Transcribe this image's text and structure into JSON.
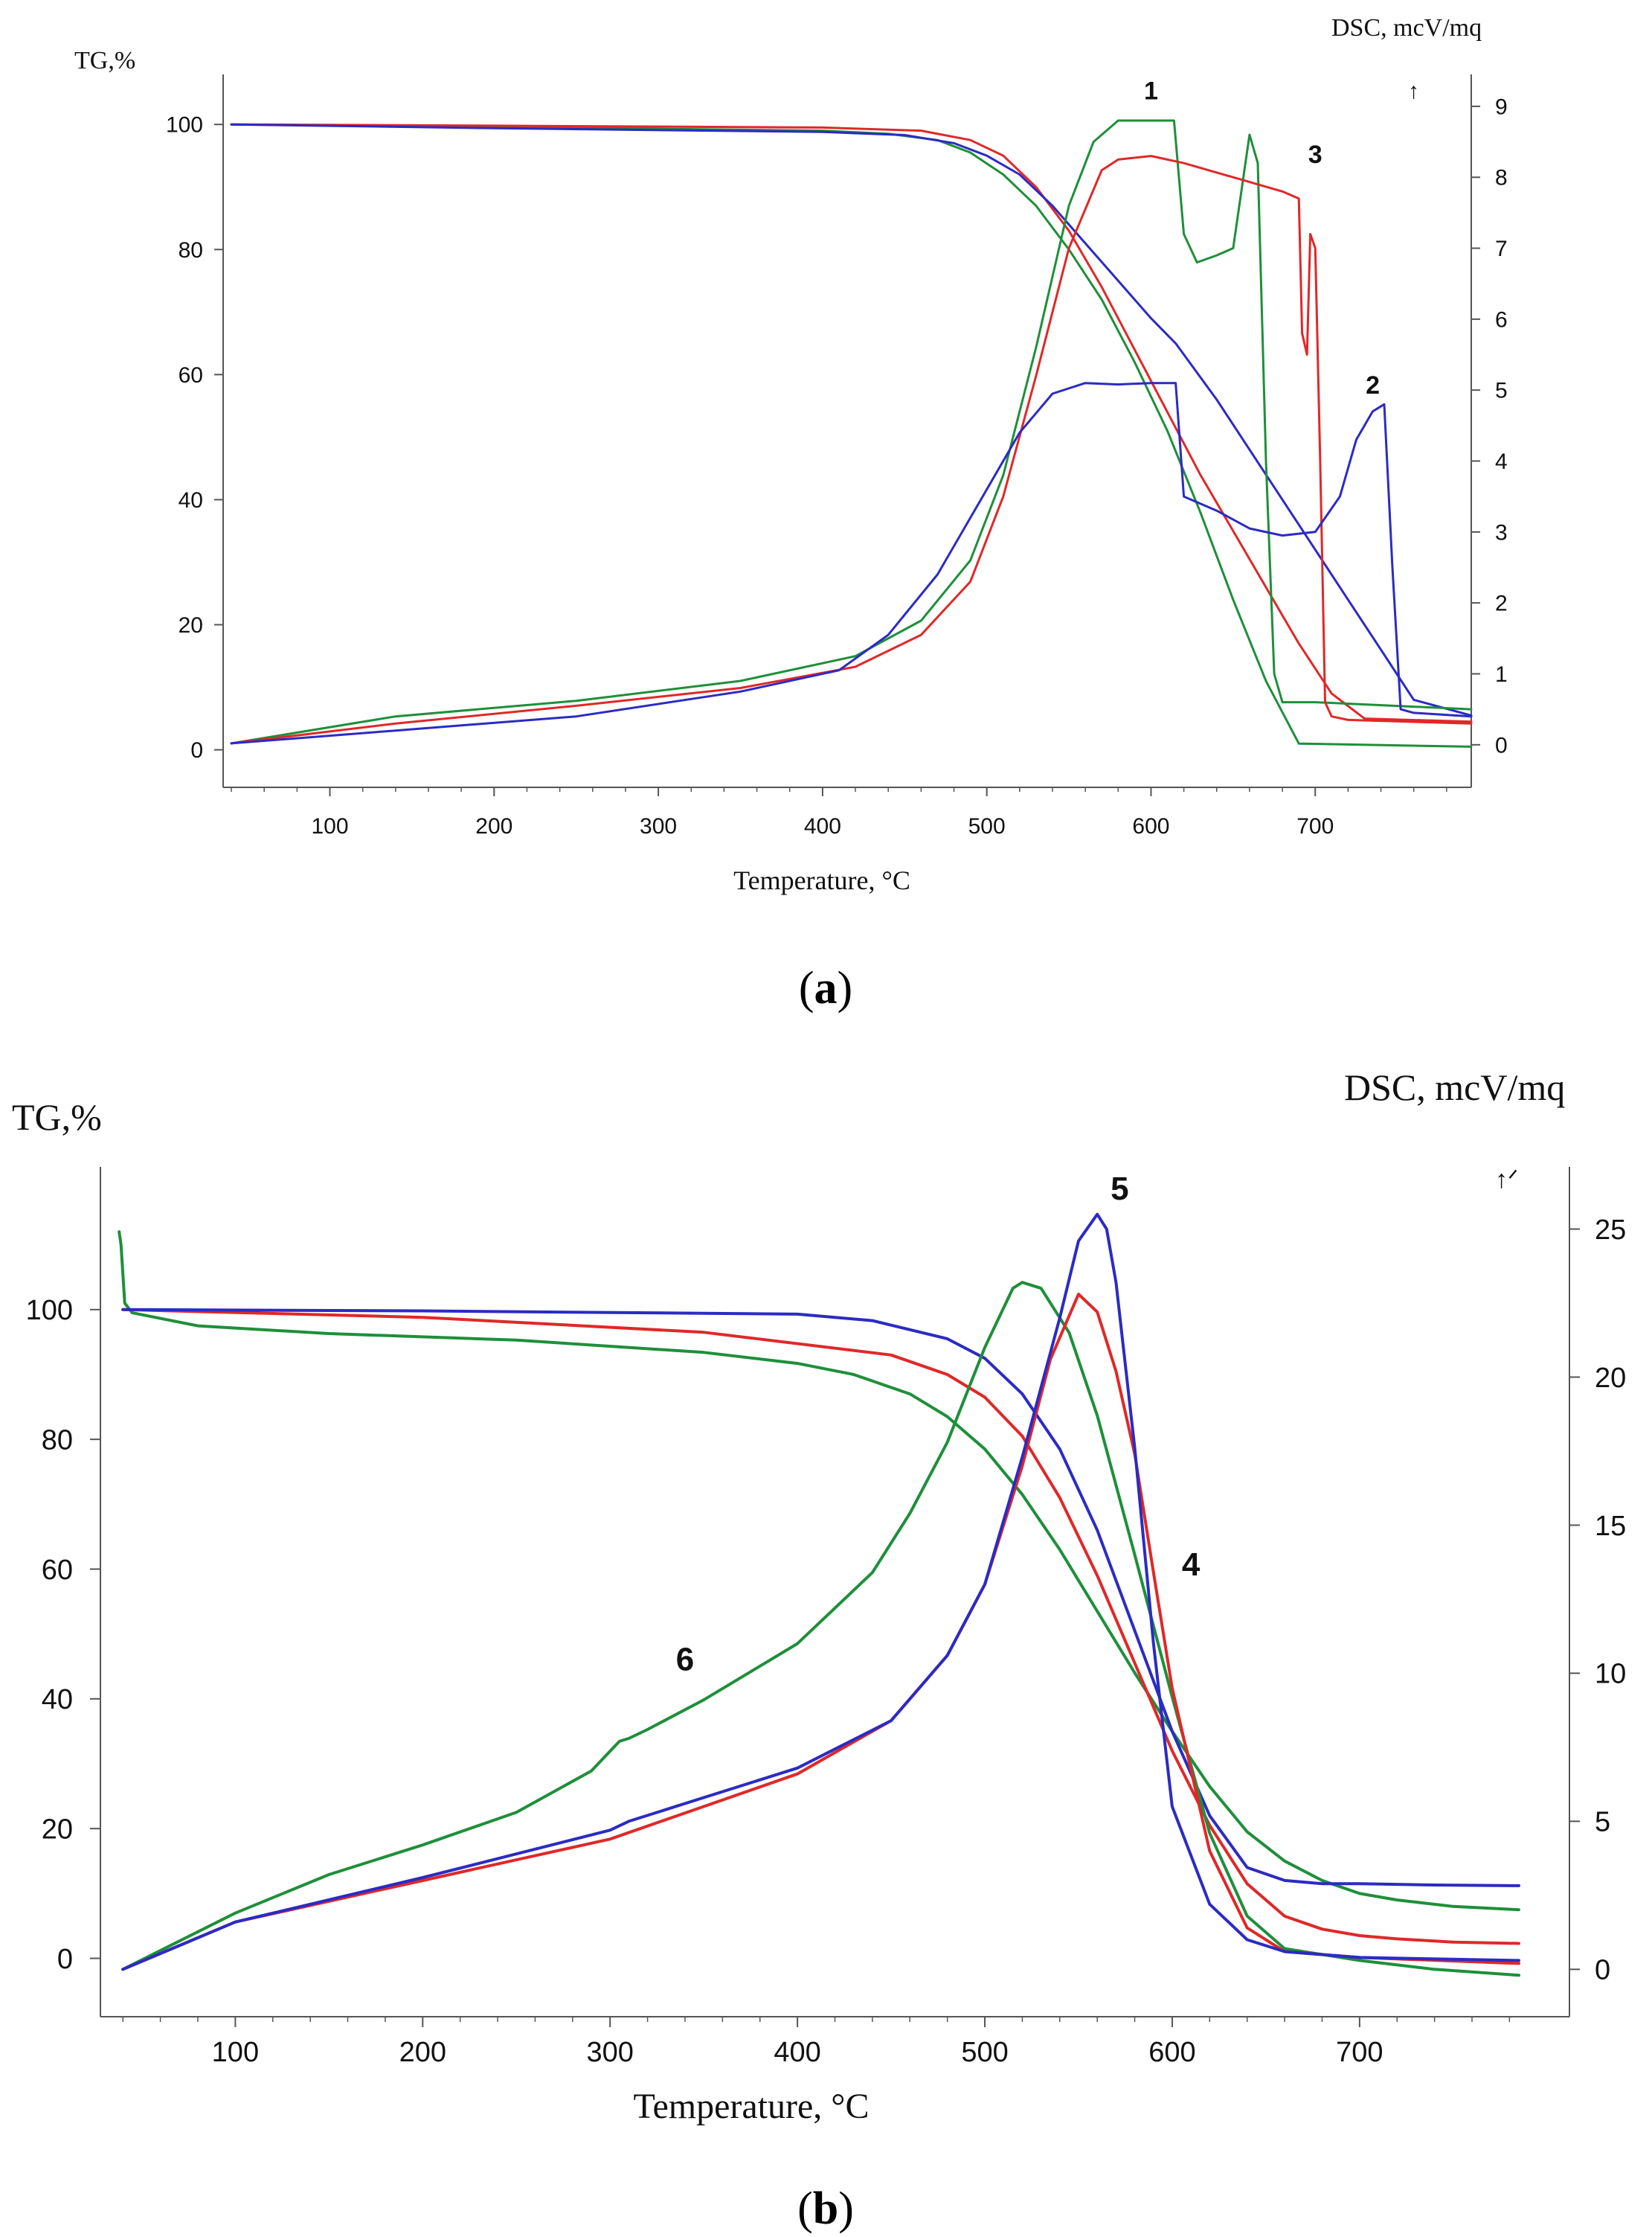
{
  "colors": {
    "s1": "#1e8f3a",
    "s2": "#2b2bc4",
    "s3": "#e02828",
    "axis": "#555555"
  },
  "chart_data": [
    {
      "id": "a",
      "type": "line",
      "panel_label": "(a)",
      "panel_letter": "a",
      "xlabel": "Temperature, °C",
      "ylabel_left": "TG,%",
      "ylabel_right": "DSC, mcV/mq",
      "arrow_mark": "↑",
      "xlim": [
        35,
        795
      ],
      "ylim_left": [
        -6,
        108
      ],
      "ylim_right": [
        -0.6,
        9.45
      ],
      "xticks": [
        100,
        200,
        300,
        400,
        500,
        600,
        700
      ],
      "yticks_left": [
        0,
        20,
        40,
        60,
        80,
        100
      ],
      "yticks_right": [
        0,
        1,
        2,
        3,
        4,
        5,
        6,
        7,
        8,
        9
      ],
      "annotations": [
        {
          "text": "1",
          "x": 600,
          "y": 9.1,
          "axis": "right"
        },
        {
          "text": "3",
          "x": 700,
          "y": 8.2,
          "axis": "right"
        },
        {
          "text": "2",
          "x": 735,
          "y": 4.95,
          "axis": "right"
        }
      ],
      "series": [
        {
          "name": "TG 1",
          "color": "s1",
          "axis": "left",
          "x": [
            40,
            200,
            400,
            440,
            470,
            490,
            510,
            530,
            550,
            570,
            590,
            610,
            630,
            650,
            670,
            690,
            795
          ],
          "y": [
            100,
            99.6,
            99,
            98.5,
            97.5,
            95.5,
            92,
            87,
            80,
            72,
            62,
            51,
            38,
            24,
            11,
            1,
            0.5
          ]
        },
        {
          "name": "TG 3",
          "color": "s3",
          "axis": "left",
          "x": [
            40,
            200,
            400,
            460,
            490,
            510,
            530,
            550,
            570,
            590,
            610,
            630,
            650,
            670,
            690,
            710,
            730,
            795
          ],
          "y": [
            100,
            99.8,
            99.5,
            99,
            97.5,
            95,
            90,
            83,
            74,
            64,
            54,
            44,
            35,
            26,
            17,
            9,
            5,
            4.5
          ]
        },
        {
          "name": "TG 2",
          "color": "s2",
          "axis": "left",
          "x": [
            40,
            200,
            400,
            450,
            480,
            500,
            520,
            540,
            560,
            580,
            600,
            615,
            640,
            660,
            680,
            700,
            720,
            740,
            760,
            795
          ],
          "y": [
            100,
            99.4,
            98.8,
            98.3,
            97,
            95,
            92,
            87,
            81,
            75,
            69,
            65,
            56,
            48,
            40,
            32,
            24,
            16,
            8,
            5.5
          ]
        },
        {
          "name": "DSC 1",
          "color": "s1",
          "axis": "right",
          "x": [
            40,
            140,
            250,
            350,
            420,
            460,
            490,
            510,
            530,
            550,
            565,
            580,
            600,
            614,
            620,
            628,
            640,
            650,
            655,
            660,
            665,
            670,
            675,
            680,
            700,
            795
          ],
          "y": [
            0.02,
            0.4,
            0.62,
            0.9,
            1.25,
            1.75,
            2.6,
            3.8,
            5.6,
            7.6,
            8.5,
            8.8,
            8.8,
            8.8,
            7.2,
            6.8,
            6.9,
            7.0,
            7.8,
            8.6,
            8.2,
            4.0,
            1.0,
            0.6,
            0.6,
            0.5
          ]
        },
        {
          "name": "DSC 3",
          "color": "s3",
          "axis": "right",
          "x": [
            40,
            140,
            250,
            350,
            420,
            460,
            490,
            510,
            530,
            550,
            570,
            580,
            600,
            620,
            650,
            680,
            690,
            692,
            695,
            697,
            700,
            703,
            706,
            710,
            720,
            795
          ],
          "y": [
            0.02,
            0.3,
            0.55,
            0.8,
            1.1,
            1.55,
            2.3,
            3.5,
            5.2,
            7.0,
            8.1,
            8.25,
            8.3,
            8.2,
            8.0,
            7.8,
            7.7,
            5.8,
            5.5,
            7.2,
            7.0,
            4.0,
            0.6,
            0.4,
            0.35,
            0.3
          ]
        },
        {
          "name": "DSC 2",
          "color": "s2",
          "axis": "right",
          "x": [
            40,
            140,
            250,
            350,
            410,
            440,
            470,
            500,
            520,
            540,
            560,
            580,
            600,
            615,
            620,
            640,
            660,
            680,
            700,
            715,
            725,
            735,
            742,
            747,
            752,
            760,
            795
          ],
          "y": [
            0.02,
            0.2,
            0.4,
            0.75,
            1.05,
            1.55,
            2.4,
            3.6,
            4.4,
            4.95,
            5.1,
            5.08,
            5.1,
            5.1,
            3.5,
            3.3,
            3.05,
            2.95,
            3.0,
            3.5,
            4.3,
            4.7,
            4.8,
            2.5,
            0.5,
            0.45,
            0.4
          ]
        }
      ]
    },
    {
      "id": "b",
      "type": "line",
      "panel_label": "(b)",
      "panel_letter": "b",
      "xlabel": "Temperature, °C",
      "ylabel_left": "TG,%",
      "ylabel_right": "DSC, mcV/mq",
      "arrow_mark": "↑ᐟ",
      "xlim": [
        28,
        812
      ],
      "ylim_left": [
        -9,
        122
      ],
      "ylim_right": [
        -1.6,
        27.1
      ],
      "xticks": [
        100,
        200,
        300,
        400,
        500,
        600,
        700
      ],
      "yticks_left": [
        0,
        20,
        40,
        60,
        80,
        100
      ],
      "yticks_right": [
        0,
        5,
        10,
        15,
        20,
        25
      ],
      "annotations": [
        {
          "text": "5",
          "x": 572,
          "y": 26.0,
          "axis": "right"
        },
        {
          "text": "4",
          "x": 610,
          "y": 13.3,
          "axis": "right"
        },
        {
          "text": "6",
          "x": 340,
          "y": 10.1,
          "axis": "right"
        }
      ],
      "series": [
        {
          "name": "TG 6",
          "color": "s1",
          "axis": "left",
          "x": [
            38,
            39,
            41,
            45,
            80,
            150,
            250,
            350,
            400,
            430,
            460,
            480,
            500,
            520,
            540,
            560,
            580,
            600,
            620,
            640,
            660,
            680,
            700,
            720,
            750,
            785
          ],
          "y": [
            112,
            110,
            101,
            99.5,
            97.5,
            96.3,
            95.3,
            93.4,
            91.7,
            90,
            87,
            83.5,
            78.5,
            71.5,
            63,
            53.5,
            44,
            35,
            26.5,
            19.5,
            15,
            12,
            10,
            9,
            8,
            7.5
          ]
        },
        {
          "name": "TG 4",
          "color": "s3",
          "axis": "left",
          "x": [
            40,
            200,
            350,
            450,
            480,
            500,
            520,
            540,
            560,
            580,
            600,
            620,
            640,
            660,
            680,
            700,
            720,
            750,
            785
          ],
          "y": [
            100,
            98.8,
            96.5,
            93,
            90,
            86.5,
            80.5,
            71,
            59,
            45.5,
            32,
            20.5,
            11.5,
            6.5,
            4.5,
            3.5,
            3,
            2.5,
            2.3
          ]
        },
        {
          "name": "TG 5",
          "color": "s2",
          "axis": "left",
          "x": [
            40,
            200,
            400,
            440,
            480,
            500,
            520,
            540,
            560,
            580,
            600,
            620,
            640,
            660,
            680,
            700,
            740,
            785
          ],
          "y": [
            100,
            99.8,
            99.3,
            98.3,
            95.5,
            92.5,
            87,
            78.5,
            66,
            50.5,
            35,
            22,
            14,
            12,
            11.5,
            11.5,
            11.3,
            11.2
          ]
        },
        {
          "name": "DSC 6",
          "color": "s1",
          "axis": "right",
          "x": [
            40,
            100,
            150,
            200,
            250,
            290,
            305,
            310,
            320,
            350,
            400,
            440,
            460,
            480,
            500,
            515,
            520,
            530,
            545,
            560,
            580,
            600,
            620,
            640,
            660,
            700,
            740,
            785
          ],
          "y": [
            0,
            1.9,
            3.2,
            4.2,
            5.3,
            6.7,
            7.7,
            7.8,
            8.1,
            9.1,
            11.0,
            13.4,
            15.4,
            17.8,
            21.0,
            23.0,
            23.2,
            23.0,
            21.5,
            18.7,
            14.0,
            9.2,
            4.6,
            1.8,
            0.7,
            0.3,
            0.0,
            -0.2
          ]
        },
        {
          "name": "DSC 4",
          "color": "s3",
          "axis": "right",
          "x": [
            40,
            100,
            200,
            300,
            350,
            400,
            450,
            480,
            500,
            520,
            535,
            550,
            560,
            570,
            580,
            590,
            600,
            620,
            640,
            660,
            700,
            785
          ],
          "y": [
            0,
            1.6,
            3.0,
            4.4,
            5.5,
            6.6,
            8.4,
            10.6,
            13.0,
            17.0,
            20.6,
            22.8,
            22.2,
            20.2,
            17.4,
            13.4,
            9.5,
            4.0,
            1.4,
            0.6,
            0.4,
            0.2
          ]
        },
        {
          "name": "DSC 5",
          "color": "s2",
          "axis": "right",
          "x": [
            40,
            100,
            200,
            300,
            310,
            350,
            400,
            450,
            480,
            500,
            520,
            540,
            550,
            560,
            565,
            570,
            580,
            590,
            600,
            620,
            640,
            660,
            700,
            785
          ],
          "y": [
            0,
            1.6,
            3.1,
            4.7,
            5.0,
            5.8,
            6.8,
            8.4,
            10.6,
            13.0,
            17.3,
            22.0,
            24.6,
            25.5,
            25.0,
            23.2,
            17.6,
            11.0,
            5.5,
            2.2,
            1.0,
            0.6,
            0.4,
            0.3
          ]
        }
      ]
    }
  ]
}
